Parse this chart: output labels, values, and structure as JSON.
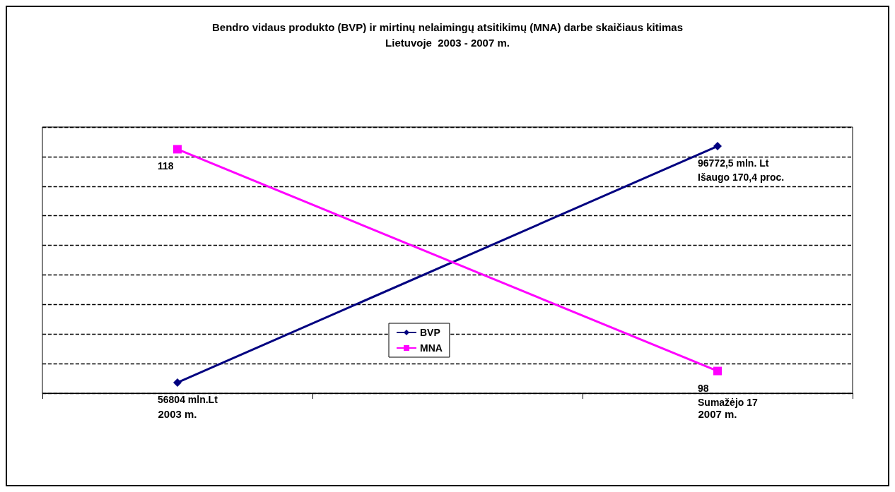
{
  "chart_data": {
    "type": "line",
    "title": "Bendro vidaus produkto (BVP) ir mirtinų nelaimingų atsitikimų (MNA) darbe skaičiaus kitimas\nLietuvoje  2003 - 2007 m.",
    "categories": [
      "2003 m.",
      null,
      "2007 m."
    ],
    "tick_labels": "x",
    "grid": "y",
    "legend": "center",
    "line_style": "solid",
    "series": [
      {
        "name": "BVP",
        "color": "#000080",
        "marker": "diamond",
        "values": [
          56804,
          null,
          96772.5
        ],
        "value_labels": [
          "56804 mln.Lt",
          null,
          "96772,5 mln. Lt\nIšaugo 170,4 proc."
        ]
      },
      {
        "name": "MNA",
        "color": "#ff00ff",
        "marker": "square",
        "axis": "y2",
        "values": [
          118,
          null,
          98
        ],
        "value_labels": [
          "118",
          null,
          "98\nSumažėjo 17"
        ]
      }
    ]
  }
}
